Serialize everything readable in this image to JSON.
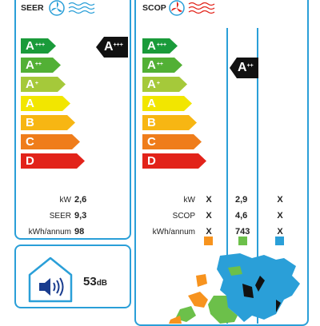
{
  "cooling": {
    "title": "SEER",
    "icon": "fan-icon",
    "bars": [
      {
        "main": "A",
        "sup": "+++",
        "color": "#1a9b3a"
      },
      {
        "main": "A",
        "sup": "++",
        "color": "#52b035"
      },
      {
        "main": "A",
        "sup": "+",
        "color": "#a5c93a"
      },
      {
        "main": "A",
        "sup": "",
        "color": "#f2e600"
      },
      {
        "main": "B",
        "sup": "",
        "color": "#f7b613"
      },
      {
        "main": "C",
        "sup": "",
        "color": "#ef7d1b"
      },
      {
        "main": "D",
        "sup": "",
        "color": "#e2231a"
      }
    ],
    "rating": {
      "main": "A",
      "sup": "+++"
    },
    "values": [
      {
        "label": "kW",
        "value": "2,6"
      },
      {
        "label": "SEER",
        "value": "9,3"
      },
      {
        "label": "kWh/annum",
        "value": "98"
      }
    ]
  },
  "heating": {
    "title": "SCOP",
    "icon": "heat-fan-icon",
    "bars": [
      {
        "main": "A",
        "sup": "+++",
        "color": "#1a9b3a"
      },
      {
        "main": "A",
        "sup": "++",
        "color": "#52b035"
      },
      {
        "main": "A",
        "sup": "+",
        "color": "#a5c93a"
      },
      {
        "main": "A",
        "sup": "",
        "color": "#f2e600"
      },
      {
        "main": "B",
        "sup": "",
        "color": "#f7b613"
      },
      {
        "main": "C",
        "sup": "",
        "color": "#ef7d1b"
      },
      {
        "main": "D",
        "sup": "",
        "color": "#e2231a"
      }
    ],
    "rating": {
      "main": "A",
      "sup": "++"
    },
    "values": [
      {
        "label": "kW",
        "cols": [
          "X",
          "2,9",
          "X"
        ]
      },
      {
        "label": "SCOP",
        "cols": [
          "X",
          "4,6",
          "X"
        ]
      },
      {
        "label": "kWh/annum",
        "cols": [
          "X",
          "743",
          "X"
        ]
      }
    ],
    "zone_colors": [
      "#f7931e",
      "#6cc04a",
      "#2a9fd8"
    ]
  },
  "noise": {
    "icon": "house-speaker-icon",
    "value": "53",
    "unit": "dB"
  },
  "colors": {
    "frame": "#2a9fd8",
    "rating_badge": "#111111"
  }
}
